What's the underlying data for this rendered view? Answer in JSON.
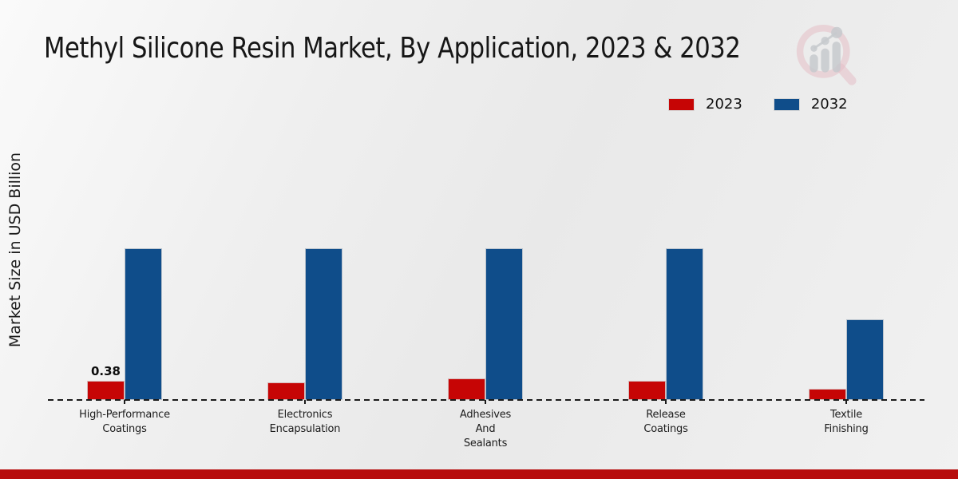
{
  "page": {
    "background_color": "#ececec",
    "footer_color": "#b70c0c"
  },
  "header": {
    "title": "Methyl Silicone Resin Market, By Application, 2023 & 2032",
    "logo_icon": "magnifier-bar-chart-watermark"
  },
  "legend": {
    "position": "top-right",
    "items": [
      {
        "label": "2023",
        "color": "#c60505"
      },
      {
        "label": "2032",
        "color": "#0f4d8a"
      }
    ]
  },
  "chart_data": {
    "type": "bar",
    "title": "Methyl Silicone Resin Market, By Application, 2023 & 2032",
    "xlabel": "",
    "ylabel": "Market Size in USD Billion",
    "categories": [
      "High-Performance Coatings",
      "Electronics Encapsulation",
      "Adhesives And Sealants",
      "Release Coatings",
      "Textile Finishing"
    ],
    "category_label_lines": [
      [
        "High-Performance",
        "Coatings"
      ],
      [
        "Electronics",
        "Encapsulation"
      ],
      [
        "Adhesives",
        "And",
        "Sealants"
      ],
      [
        "Release",
        "Coatings"
      ],
      [
        "Textile",
        "Finishing"
      ]
    ],
    "series": [
      {
        "name": "2023",
        "color": "#c60505",
        "values": [
          0.38,
          0.35,
          0.44,
          0.38,
          0.22
        ]
      },
      {
        "name": "2032",
        "color": "#0f4d8a",
        "values": [
          3.07,
          3.07,
          3.07,
          3.07,
          1.63
        ]
      }
    ],
    "annotations": [
      {
        "series": "2023",
        "category_index": 0,
        "text": "0.38"
      }
    ],
    "ylim": [
      0,
      3.5
    ],
    "grid": false,
    "y_axis_ticks_visible": false,
    "baseline_style": "dashed",
    "legend_position": "top-right"
  }
}
